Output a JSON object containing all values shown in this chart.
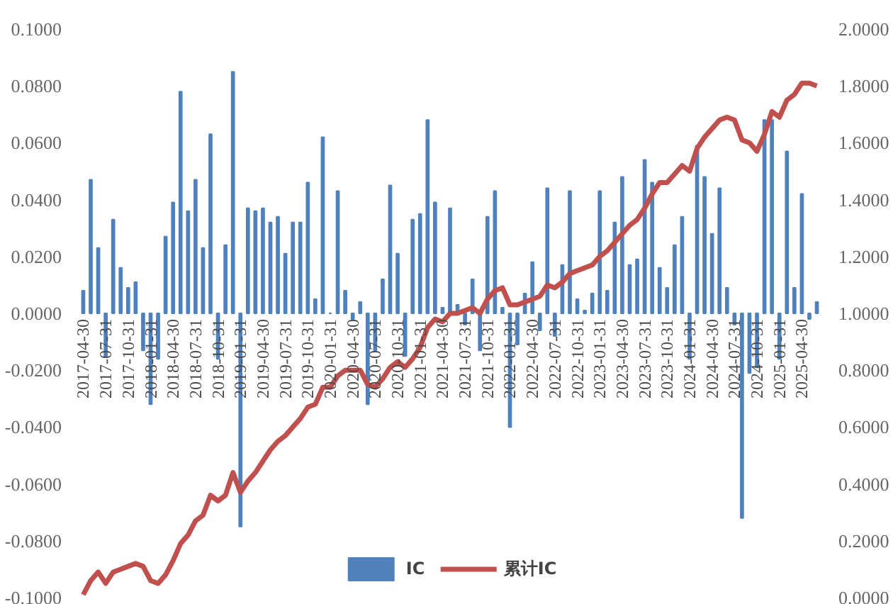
{
  "chart_data": {
    "type": "bar",
    "categories": [
      "2017-04-30",
      null,
      null,
      "2017-07-31",
      null,
      null,
      "2017-10-31",
      null,
      null,
      "2018-01-31",
      null,
      null,
      "2018-04-30",
      null,
      null,
      "2018-07-31",
      null,
      null,
      "2018-10-31",
      null,
      null,
      "2019-01-31",
      null,
      null,
      "2019-04-30",
      null,
      null,
      "2019-07-31",
      null,
      null,
      "2019-10-31",
      null,
      null,
      "2020-01-31",
      null,
      null,
      "2020-04-30",
      null,
      null,
      "2020-07-31",
      null,
      null,
      "2020-10-31",
      null,
      null,
      "2021-01-31",
      null,
      null,
      "2021-04-30",
      null,
      null,
      "2021-07-31",
      null,
      null,
      "2021-10-31",
      null,
      null,
      "2022-01-31",
      null,
      null,
      "2022-04-30",
      null,
      null,
      "2022-07-31",
      null,
      null,
      "2022-10-31",
      null,
      null,
      "2023-01-31",
      null,
      null,
      "2023-04-30",
      null,
      null,
      "2023-07-31",
      null,
      null,
      "2023-10-31",
      null,
      null,
      "2024-01-31",
      null,
      null,
      "2024-04-30",
      null,
      null,
      "2024-07-31",
      null,
      null,
      "2024-10-31",
      null,
      null,
      "2025-01-31",
      null,
      null,
      "2025-04-30",
      null,
      null
    ],
    "series": [
      {
        "name": "IC",
        "color": "#4f81bd",
        "values": [
          0.008,
          0.047,
          0.023,
          -0.015,
          0.033,
          0.016,
          0.009,
          0.011,
          -0.013,
          -0.032,
          -0.016,
          0.027,
          0.039,
          0.078,
          0.036,
          0.047,
          0.023,
          0.063,
          -0.016,
          0.024,
          0.085,
          -0.075,
          0.037,
          0.036,
          0.037,
          0.032,
          0.034,
          0.021,
          0.032,
          0.032,
          0.046,
          0.005,
          0.062,
          0.0,
          0.043,
          0.008,
          -0.002,
          0.004,
          -0.032,
          -0.013,
          0.012,
          0.045,
          0.021,
          -0.015,
          0.033,
          0.035,
          0.068,
          0.039,
          0.002,
          0.037,
          0.003,
          -0.004,
          0.012,
          -0.013,
          0.034,
          0.043,
          0.002,
          -0.04,
          -0.011,
          0.007,
          0.018,
          -0.006,
          0.044,
          -0.008,
          0.017,
          0.043,
          0.005,
          0.001,
          0.007,
          0.043,
          0.008,
          0.032,
          0.048,
          0.017,
          0.019,
          0.054,
          0.046,
          0.016,
          0.009,
          0.024,
          0.034,
          -0.016,
          0.059,
          0.048,
          0.028,
          0.044,
          0.009,
          -0.004,
          -0.072,
          -0.021,
          -0.019,
          0.068,
          0.068,
          -0.016,
          0.057,
          0.009,
          0.042,
          -0.002,
          0.004
        ]
      },
      {
        "name": "累计IC",
        "type": "line",
        "axis": "y2",
        "color": "#c0504d",
        "values": [
          0.01,
          0.06,
          0.09,
          0.05,
          0.09,
          0.1,
          0.11,
          0.12,
          0.11,
          0.06,
          0.05,
          0.08,
          0.13,
          0.19,
          0.22,
          0.27,
          0.29,
          0.36,
          0.34,
          0.36,
          0.44,
          0.37,
          0.41,
          0.44,
          0.48,
          0.52,
          0.55,
          0.57,
          0.6,
          0.63,
          0.67,
          0.68,
          0.74,
          0.74,
          0.78,
          0.8,
          0.8,
          0.8,
          0.75,
          0.74,
          0.77,
          0.81,
          0.83,
          0.81,
          0.84,
          0.88,
          0.95,
          0.98,
          0.97,
          1.0,
          1.0,
          1.01,
          1.02,
          1.0,
          1.05,
          1.08,
          1.09,
          1.03,
          1.03,
          1.04,
          1.05,
          1.06,
          1.1,
          1.09,
          1.11,
          1.14,
          1.15,
          1.16,
          1.17,
          1.2,
          1.22,
          1.25,
          1.28,
          1.31,
          1.33,
          1.37,
          1.42,
          1.46,
          1.46,
          1.49,
          1.52,
          1.5,
          1.58,
          1.62,
          1.65,
          1.68,
          1.69,
          1.68,
          1.61,
          1.6,
          1.57,
          1.63,
          1.71,
          1.69,
          1.75,
          1.77,
          1.81,
          1.81,
          1.8
        ]
      }
    ],
    "ylim": [
      -0.1,
      0.1
    ],
    "yticks": [
      {
        "value": -0.1,
        "label": "-0.1000"
      },
      {
        "value": -0.08,
        "label": "-0.0800"
      },
      {
        "value": -0.06,
        "label": "-0.0600"
      },
      {
        "value": -0.04,
        "label": "-0.0400"
      },
      {
        "value": -0.02,
        "label": "-0.0200"
      },
      {
        "value": 0,
        "label": "0.0000"
      },
      {
        "value": 0.02,
        "label": "0.0200"
      },
      {
        "value": 0.04,
        "label": "0.0400"
      },
      {
        "value": 0.06,
        "label": "0.0600"
      },
      {
        "value": 0.08,
        "label": "0.0800"
      },
      {
        "value": 0.1,
        "label": "0.1000"
      }
    ],
    "y2lim": [
      0,
      2
    ],
    "y2ticks": [
      {
        "value": 0,
        "label": "0.0000"
      },
      {
        "value": 0.2,
        "label": "0.2000"
      },
      {
        "value": 0.4,
        "label": "0.4000"
      },
      {
        "value": 0.6,
        "label": "0.6000"
      },
      {
        "value": 0.8,
        "label": "0.8000"
      },
      {
        "value": 1,
        "label": "1.0000"
      },
      {
        "value": 1.2,
        "label": "1.2000"
      },
      {
        "value": 1.4,
        "label": "1.4000"
      },
      {
        "value": 1.6,
        "label": "1.6000"
      },
      {
        "value": 1.8,
        "label": "1.8000"
      },
      {
        "value": 2,
        "label": "2.0000"
      }
    ],
    "legend": "bottom"
  }
}
